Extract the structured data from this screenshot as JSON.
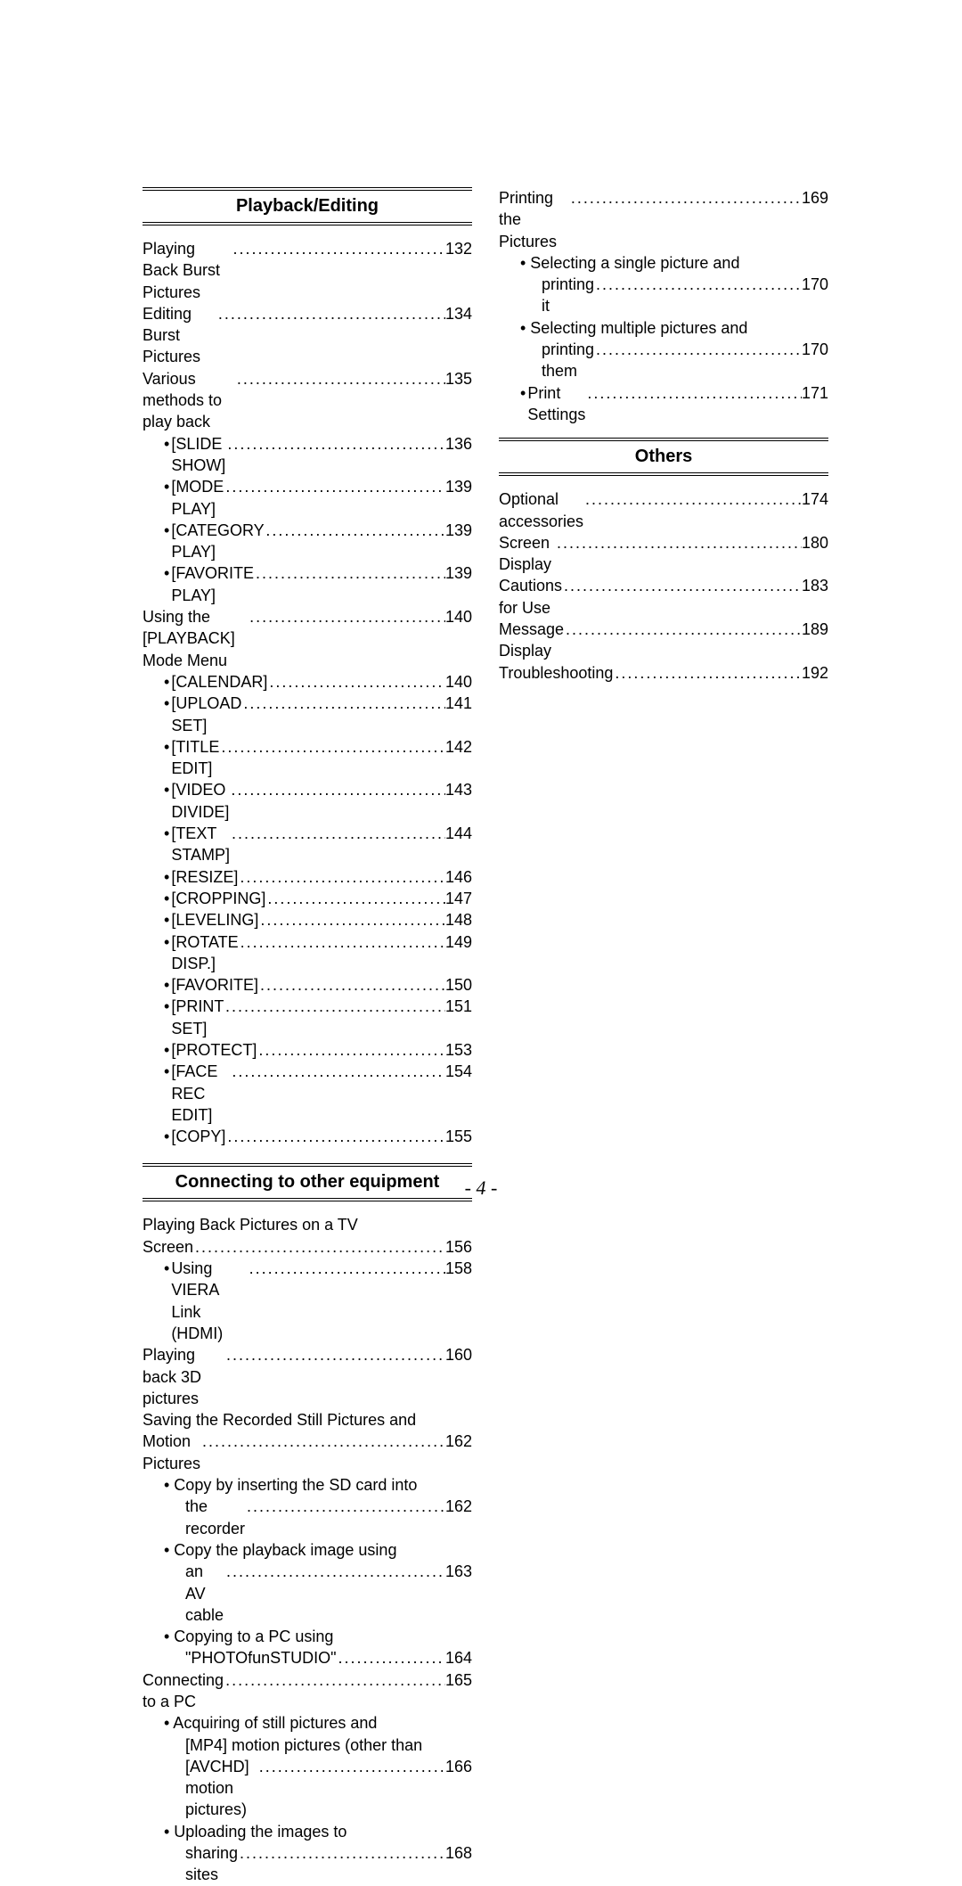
{
  "footer": {
    "page": "- 4 -"
  },
  "sections": {
    "playback": {
      "title": "Playback/Editing",
      "items": [
        {
          "label": "Playing Back Burst Pictures",
          "page": "132",
          "indent": 0
        },
        {
          "label": "Editing Burst Pictures",
          "page": "134",
          "indent": 0
        },
        {
          "label": "Various methods to play back",
          "page": "135",
          "indent": 0
        },
        {
          "label": "[SLIDE SHOW]",
          "page": "136",
          "indent": 1,
          "bullet": true
        },
        {
          "label": "[MODE PLAY]",
          "page": "139",
          "indent": 1,
          "bullet": true
        },
        {
          "label": "[CATEGORY PLAY]",
          "page": "139",
          "indent": 1,
          "bullet": true
        },
        {
          "label": "[FAVORITE PLAY]",
          "page": "139",
          "indent": 1,
          "bullet": true
        },
        {
          "label": "Using the [PLAYBACK] Mode Menu",
          "page": "140",
          "indent": 0
        },
        {
          "label": "[CALENDAR]",
          "page": "140",
          "indent": 1,
          "bullet": true
        },
        {
          "label": "[UPLOAD SET]",
          "page": "141",
          "indent": 1,
          "bullet": true
        },
        {
          "label": "[TITLE EDIT]",
          "page": "142",
          "indent": 1,
          "bullet": true
        },
        {
          "label": "[VIDEO DIVIDE]",
          "page": "143",
          "indent": 1,
          "bullet": true
        },
        {
          "label": "[TEXT STAMP]",
          "page": "144",
          "indent": 1,
          "bullet": true
        },
        {
          "label": "[RESIZE]",
          "page": "146",
          "indent": 1,
          "bullet": true
        },
        {
          "label": "[CROPPING]",
          "page": "147",
          "indent": 1,
          "bullet": true
        },
        {
          "label": "[LEVELING]",
          "page": "148",
          "indent": 1,
          "bullet": true
        },
        {
          "label": "[ROTATE DISP.]",
          "page": "149",
          "indent": 1,
          "bullet": true
        },
        {
          "label": "[FAVORITE]",
          "page": "150",
          "indent": 1,
          "bullet": true
        },
        {
          "label": "[PRINT SET]",
          "page": "151",
          "indent": 1,
          "bullet": true
        },
        {
          "label": "[PROTECT]",
          "page": "153",
          "indent": 1,
          "bullet": true
        },
        {
          "label": "[FACE REC EDIT]",
          "page": "154",
          "indent": 1,
          "bullet": true
        },
        {
          "label": "[COPY]",
          "page": "155",
          "indent": 1,
          "bullet": true
        }
      ]
    },
    "connecting": {
      "title": "Connecting to other equipment",
      "items": [
        {
          "wrap": "Playing Back Pictures on a TV",
          "indent": 0
        },
        {
          "label": "Screen",
          "page": "156",
          "indent": 0
        },
        {
          "label": "Using VIERA Link (HDMI)",
          "page": "158",
          "indent": 1,
          "bullet": true
        },
        {
          "label": "Playing back 3D pictures",
          "page": "160",
          "indent": 0
        },
        {
          "wrap": "Saving the Recorded Still Pictures and",
          "indent": 0
        },
        {
          "label": "Motion Pictures",
          "page": "162",
          "indent": 0
        },
        {
          "wrap": "• Copy by inserting the SD card into",
          "indent": 1
        },
        {
          "label": "the recorder",
          "page": "162",
          "indent": 2
        },
        {
          "wrap": "• Copy the playback image using",
          "indent": 1
        },
        {
          "label": "an AV cable",
          "page": "163",
          "indent": 2
        },
        {
          "wrap": "• Copying to a PC using",
          "indent": 1
        },
        {
          "label": "\"PHOTOfunSTUDIO\"",
          "page": "164",
          "indent": 2
        },
        {
          "label": "Connecting to a PC",
          "page": "165",
          "indent": 0
        },
        {
          "wrap": "• Acquiring of still pictures and",
          "indent": 1
        },
        {
          "wrap": "[MP4] motion pictures (other than",
          "indent": 2
        },
        {
          "label": "[AVCHD] motion pictures)",
          "page": "166",
          "indent": 2
        },
        {
          "wrap": "• Uploading the images to",
          "indent": 1
        },
        {
          "label": "sharing sites",
          "page": "168",
          "indent": 2
        }
      ]
    },
    "right_top": {
      "items": [
        {
          "label": "Printing the Pictures",
          "page": "169",
          "indent": 0
        },
        {
          "wrap": "• Selecting a single picture and",
          "indent": 1
        },
        {
          "label": "printing it",
          "page": "170",
          "indent": 2
        },
        {
          "wrap": "• Selecting multiple pictures and",
          "indent": 1
        },
        {
          "label": "printing them",
          "page": "170",
          "indent": 2
        },
        {
          "label": "Print Settings",
          "page": "171",
          "indent": 1,
          "bullet": true
        }
      ]
    },
    "others": {
      "title": "Others",
      "items": [
        {
          "label": "Optional accessories",
          "page": "174",
          "indent": 0
        },
        {
          "label": "Screen Display",
          "page": "180",
          "indent": 0
        },
        {
          "label": "Cautions for Use",
          "page": "183",
          "indent": 0
        },
        {
          "label": "Message Display",
          "page": "189",
          "indent": 0
        },
        {
          "label": "Troubleshooting",
          "page": "192",
          "indent": 0
        }
      ]
    }
  }
}
